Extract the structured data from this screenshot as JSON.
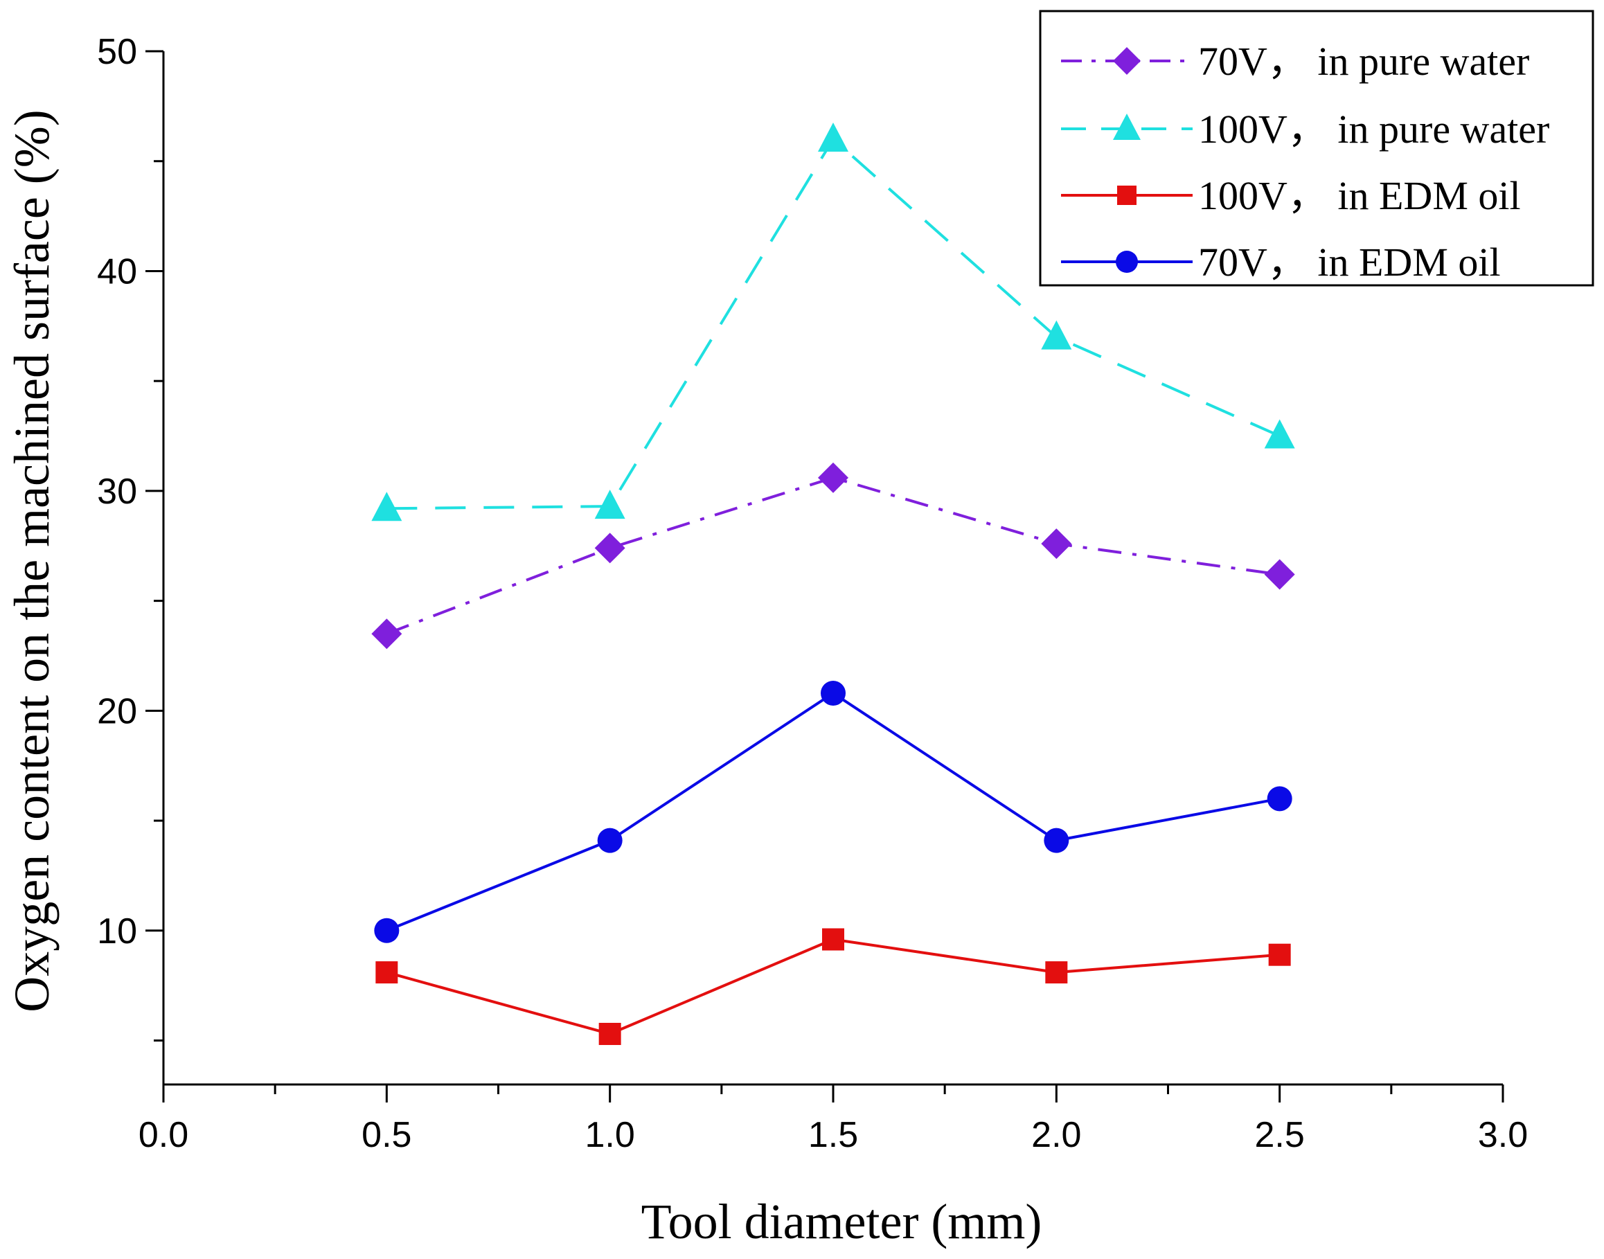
{
  "chart_data": {
    "type": "line",
    "title": "",
    "xlabel": "Tool diameter (mm)",
    "ylabel": "Oxygen content on the machined surface (%)",
    "xlim": [
      0.0,
      3.0
    ],
    "ylim": [
      3,
      50
    ],
    "xticks": [
      0.0,
      0.5,
      1.0,
      1.5,
      2.0,
      2.5,
      3.0
    ],
    "xtick_labels": [
      "0.0",
      "0.5",
      "1.0",
      "1.5",
      "2.0",
      "2.5",
      "3.0"
    ],
    "yticks": [
      10,
      20,
      30,
      40,
      50
    ],
    "ytick_labels": [
      "10",
      "20",
      "30",
      "40",
      "50"
    ],
    "grid": false,
    "legend_position": "top-right",
    "x": [
      0.5,
      1.0,
      1.5,
      2.0,
      2.5
    ],
    "series": [
      {
        "name": "70V， in pure water",
        "values": [
          23.5,
          27.4,
          30.6,
          27.6,
          26.2
        ],
        "color": "#7f1fdc",
        "marker": "diamond",
        "line_style": "dash-dot"
      },
      {
        "name": "100V， in pure water",
        "values": [
          29.2,
          29.3,
          46.0,
          37.0,
          32.5
        ],
        "color": "#1fe0e0",
        "marker": "triangle",
        "line_style": "dashed"
      },
      {
        "name": "100V， in EDM oil",
        "values": [
          8.1,
          5.3,
          9.6,
          8.1,
          8.9
        ],
        "color": "#e30f0f",
        "marker": "square",
        "line_style": "solid"
      },
      {
        "name": "70V， in EDM oil",
        "values": [
          10.0,
          14.1,
          20.8,
          14.1,
          16.0
        ],
        "color": "#0a0ae6",
        "marker": "circle",
        "line_style": "solid"
      }
    ]
  }
}
